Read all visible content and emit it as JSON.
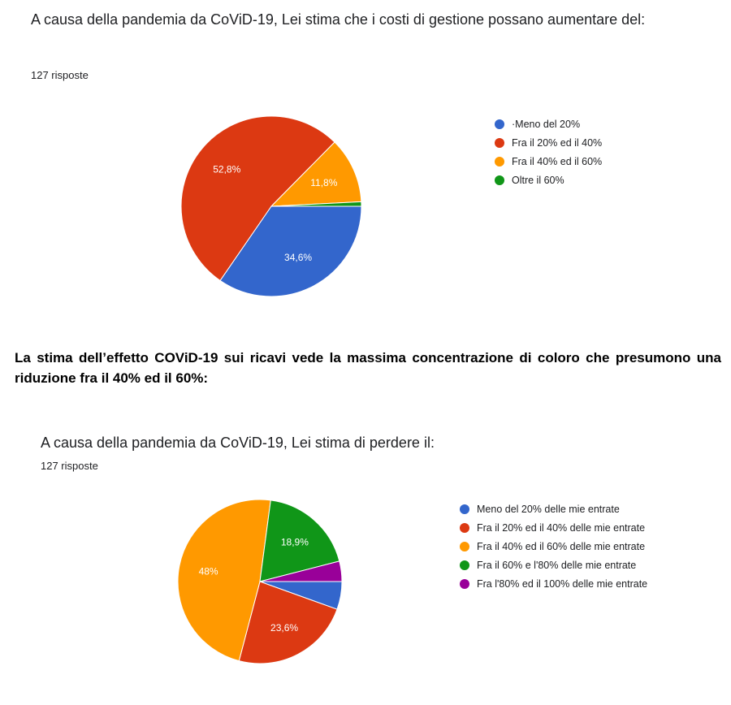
{
  "survey1": {
    "question": "A causa della pandemia da CoViD-19, Lei stima che i costi di gestione possano aumentare del:",
    "responses": "127 risposte"
  },
  "caption": "La stima dell’effetto COViD-19 sui ricavi vede la massima concentrazione di coloro che presumono una riduzione fra il 40% ed il 60%:",
  "survey2": {
    "question": "A causa della pandemia da CoViD-19, Lei stima di perdere il:",
    "responses": "127 risposte"
  },
  "chart_data": [
    {
      "type": "pie",
      "categories": [
        "·Meno del 20%",
        "Fra il 20% ed il 40%",
        "Fra il 40% ed il 60%",
        "Oltre il 60%"
      ],
      "values": [
        34.6,
        52.8,
        11.8,
        0.8
      ],
      "data_labels": [
        "34,6%",
        "52,8%",
        "11,8%",
        ""
      ],
      "colors": [
        "#3366cc",
        "#dc3912",
        "#ff9900",
        "#109618"
      ],
      "legend_position": "right"
    },
    {
      "type": "pie",
      "categories": [
        "Meno del 20% delle mie entrate",
        "Fra il 20% ed il 40% delle mie entrate",
        "Fra il 40% ed il 60% delle mie entrate",
        "Fra il 60% e l'80% delle mie entrate",
        "Fra l'80% ed il 100% delle mie entrate"
      ],
      "values": [
        5.5,
        23.6,
        48,
        18.9,
        4
      ],
      "data_labels": [
        "",
        "23,6%",
        "48%",
        "18,9%",
        ""
      ],
      "colors": [
        "#3366cc",
        "#dc3912",
        "#ff9900",
        "#109618",
        "#990099"
      ],
      "legend_position": "right"
    }
  ]
}
